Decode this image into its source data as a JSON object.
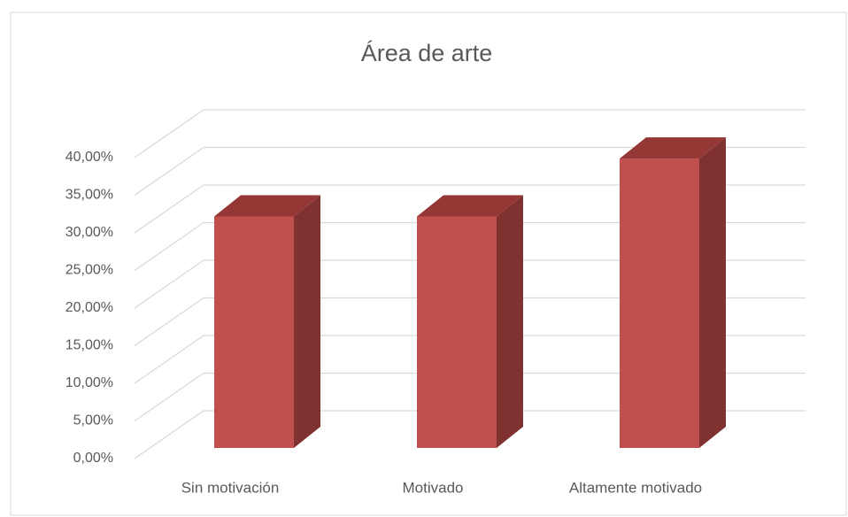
{
  "chart_data": {
    "type": "bar3d",
    "title": "Área de arte",
    "categories": [
      "Sin motivación",
      "Motivado",
      "Altamente motivado"
    ],
    "values": [
      30.77,
      30.77,
      38.46
    ],
    "color": "#c0504d",
    "ylim": [
      0,
      40
    ],
    "yticks": [
      {
        "value": 0,
        "label": "0,00%"
      },
      {
        "value": 5,
        "label": "5,00%"
      },
      {
        "value": 10,
        "label": "10,00%"
      },
      {
        "value": 15,
        "label": "15,00%"
      },
      {
        "value": 20,
        "label": "20,00%"
      },
      {
        "value": 25,
        "label": "25,00%"
      },
      {
        "value": 30,
        "label": "30,00%"
      },
      {
        "value": 35,
        "label": "35,00%"
      },
      {
        "value": 40,
        "label": "40,00%"
      }
    ],
    "grid": true
  }
}
